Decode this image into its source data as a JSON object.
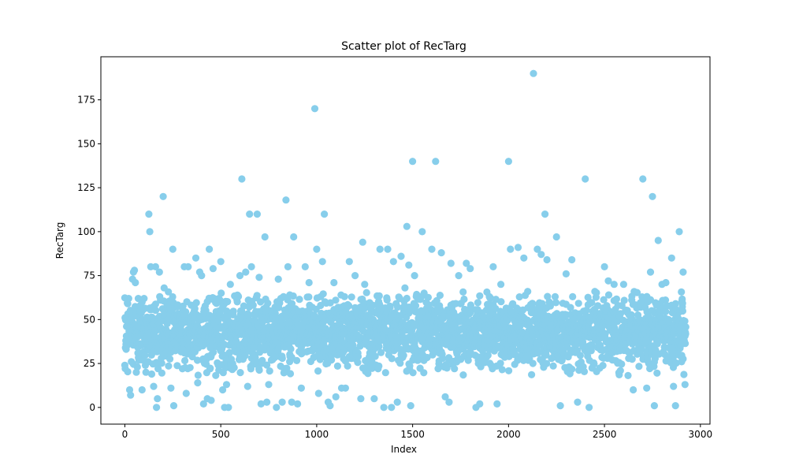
{
  "chart_data": {
    "type": "scatter",
    "title": "Scatter plot of RecTarg",
    "xlabel": "Index",
    "ylabel": "RecTarg",
    "xlim": [
      -125,
      3050
    ],
    "ylim": [
      -9.5,
      199.5
    ],
    "xticks": [
      0,
      500,
      1000,
      1500,
      2000,
      2500,
      3000
    ],
    "yticks": [
      0,
      25,
      50,
      75,
      100,
      125,
      150,
      175
    ],
    "grid": false,
    "legend": "none",
    "n_points_approx": 2925,
    "marker_color": "#87CEEB",
    "series": [
      {
        "points": [
          [
            0,
            24
          ],
          [
            5,
            38
          ],
          [
            10,
            46
          ],
          [
            15,
            59
          ],
          [
            20,
            62
          ],
          [
            25,
            10
          ],
          [
            30,
            7
          ],
          [
            40,
            73
          ],
          [
            45,
            77
          ],
          [
            50,
            78
          ],
          [
            55,
            71
          ],
          [
            60,
            20
          ],
          [
            65,
            23
          ],
          [
            70,
            62
          ],
          [
            80,
            55
          ],
          [
            90,
            10
          ],
          [
            100,
            62
          ],
          [
            110,
            20
          ],
          [
            125,
            110
          ],
          [
            130,
            100
          ],
          [
            135,
            80
          ],
          [
            140,
            19
          ],
          [
            150,
            12
          ],
          [
            160,
            80
          ],
          [
            165,
            0
          ],
          [
            170,
            5
          ],
          [
            180,
            77
          ],
          [
            190,
            28
          ],
          [
            200,
            120
          ],
          [
            205,
            68
          ],
          [
            240,
            11
          ],
          [
            250,
            90
          ],
          [
            255,
            1
          ],
          [
            300,
            22
          ],
          [
            310,
            80
          ],
          [
            320,
            8
          ],
          [
            330,
            80
          ],
          [
            370,
            85
          ],
          [
            380,
            14
          ],
          [
            390,
            77
          ],
          [
            400,
            75
          ],
          [
            410,
            2
          ],
          [
            430,
            5
          ],
          [
            440,
            90
          ],
          [
            450,
            4
          ],
          [
            460,
            79
          ],
          [
            490,
            62
          ],
          [
            500,
            83
          ],
          [
            510,
            10
          ],
          [
            520,
            0
          ],
          [
            530,
            13
          ],
          [
            540,
            0
          ],
          [
            550,
            70
          ],
          [
            600,
            75
          ],
          [
            610,
            130
          ],
          [
            630,
            77
          ],
          [
            640,
            12
          ],
          [
            650,
            110
          ],
          [
            660,
            80
          ],
          [
            690,
            110
          ],
          [
            700,
            74
          ],
          [
            710,
            2
          ],
          [
            730,
            97
          ],
          [
            740,
            3
          ],
          [
            750,
            13
          ],
          [
            790,
            0
          ],
          [
            800,
            73
          ],
          [
            820,
            3
          ],
          [
            840,
            118
          ],
          [
            850,
            80
          ],
          [
            860,
            64
          ],
          [
            870,
            3
          ],
          [
            880,
            97
          ],
          [
            900,
            2
          ],
          [
            920,
            11
          ],
          [
            940,
            80
          ],
          [
            960,
            71
          ],
          [
            990,
            170
          ],
          [
            1000,
            90
          ],
          [
            1010,
            8
          ],
          [
            1020,
            58
          ],
          [
            1030,
            83
          ],
          [
            1040,
            110
          ],
          [
            1060,
            3
          ],
          [
            1070,
            1
          ],
          [
            1090,
            71
          ],
          [
            1100,
            6
          ],
          [
            1130,
            11
          ],
          [
            1150,
            11
          ],
          [
            1170,
            83
          ],
          [
            1200,
            75
          ],
          [
            1230,
            5
          ],
          [
            1240,
            94
          ],
          [
            1250,
            70
          ],
          [
            1300,
            5
          ],
          [
            1320,
            22
          ],
          [
            1330,
            90
          ],
          [
            1350,
            0
          ],
          [
            1370,
            90
          ],
          [
            1390,
            0
          ],
          [
            1400,
            83
          ],
          [
            1420,
            3
          ],
          [
            1440,
            86
          ],
          [
            1460,
            68
          ],
          [
            1470,
            103
          ],
          [
            1480,
            81
          ],
          [
            1490,
            1
          ],
          [
            1500,
            140
          ],
          [
            1510,
            75
          ],
          [
            1550,
            100
          ],
          [
            1560,
            65
          ],
          [
            1580,
            52
          ],
          [
            1600,
            90
          ],
          [
            1620,
            140
          ],
          [
            1650,
            88
          ],
          [
            1670,
            6
          ],
          [
            1690,
            3
          ],
          [
            1700,
            82
          ],
          [
            1740,
            75
          ],
          [
            1750,
            59
          ],
          [
            1780,
            82
          ],
          [
            1800,
            79
          ],
          [
            1830,
            0
          ],
          [
            1850,
            2
          ],
          [
            1900,
            63
          ],
          [
            1920,
            80
          ],
          [
            1940,
            2
          ],
          [
            1960,
            70
          ],
          [
            2000,
            140
          ],
          [
            2010,
            90
          ],
          [
            2050,
            91
          ],
          [
            2080,
            85
          ],
          [
            2100,
            66
          ],
          [
            2130,
            190
          ],
          [
            2150,
            90
          ],
          [
            2170,
            87
          ],
          [
            2190,
            110
          ],
          [
            2200,
            84
          ],
          [
            2250,
            97
          ],
          [
            2270,
            1
          ],
          [
            2300,
            76
          ],
          [
            2330,
            84
          ],
          [
            2360,
            3
          ],
          [
            2400,
            130
          ],
          [
            2420,
            0
          ],
          [
            2450,
            66
          ],
          [
            2500,
            80
          ],
          [
            2520,
            72
          ],
          [
            2550,
            70
          ],
          [
            2600,
            70
          ],
          [
            2650,
            10
          ],
          [
            2700,
            130
          ],
          [
            2720,
            11
          ],
          [
            2740,
            77
          ],
          [
            2750,
            120
          ],
          [
            2760,
            1
          ],
          [
            2780,
            95
          ],
          [
            2800,
            70
          ],
          [
            2820,
            71
          ],
          [
            2850,
            85
          ],
          [
            2860,
            12
          ],
          [
            2870,
            1
          ],
          [
            2890,
            100
          ],
          [
            2910,
            77
          ],
          [
            2920,
            13
          ]
        ]
      }
    ]
  }
}
